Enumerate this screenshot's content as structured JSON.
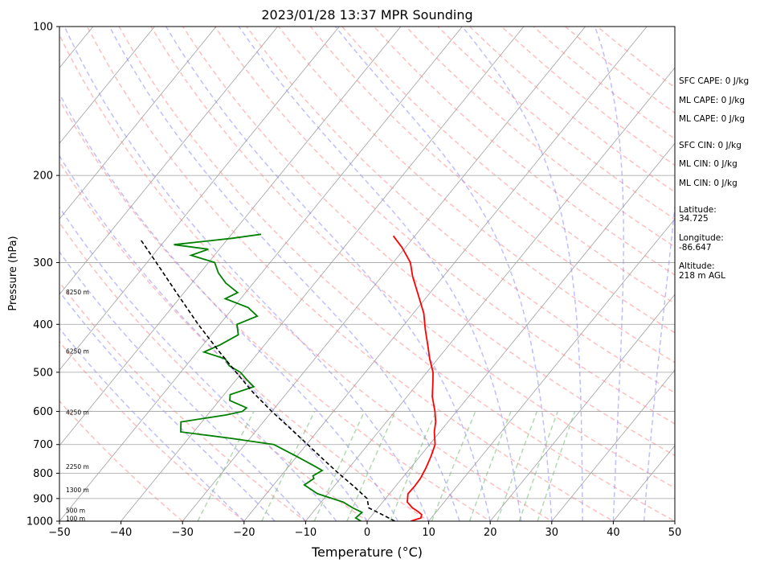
{
  "chart_data": {
    "type": "line",
    "title": "2023/01/28 13:37 MPR Sounding",
    "xlabel": "Temperature (°C)",
    "ylabel": "Pressure (hPa)",
    "xlim": [
      -50,
      50
    ],
    "ylim": [
      1000,
      100
    ],
    "yscale": "log",
    "x_ticks": [
      -50,
      -40,
      -30,
      -20,
      -10,
      0,
      10,
      20,
      30,
      40,
      50
    ],
    "x_tick_labels": [
      "−50",
      "−40",
      "−30",
      "−20",
      "−10",
      "0",
      "10",
      "20",
      "30",
      "40",
      "50"
    ],
    "y_ticks": [
      1000,
      900,
      800,
      700,
      600,
      500,
      400,
      300,
      200,
      100
    ],
    "y_tick_labels": [
      "1000",
      "900",
      "800",
      "700",
      "600",
      "500",
      "400",
      "300",
      "200",
      "100"
    ],
    "grid": true,
    "skew_t": true,
    "height_labels": [
      {
        "p": 990,
        "text": "100 m"
      },
      {
        "p": 955,
        "text": "500 m"
      },
      {
        "p": 867,
        "text": "1300 m"
      },
      {
        "p": 778,
        "text": "2250 m"
      },
      {
        "p": 604,
        "text": "4250 m"
      },
      {
        "p": 455,
        "text": "6250 m"
      },
      {
        "p": 345,
        "text": "8250 m"
      }
    ],
    "series": [
      {
        "kind": "temperature",
        "color": "#ff0000",
        "points": [
          [
            1000,
            7.1
          ],
          [
            985,
            8.3
          ],
          [
            970,
            8.0
          ],
          [
            955,
            6.9
          ],
          [
            940,
            5.6
          ],
          [
            915,
            4.0
          ],
          [
            880,
            3.0
          ],
          [
            850,
            3.1
          ],
          [
            820,
            3.0
          ],
          [
            780,
            2.5
          ],
          [
            740,
            1.8
          ],
          [
            700,
            0.9
          ],
          [
            660,
            -0.9
          ],
          [
            630,
            -2.0
          ],
          [
            600,
            -3.5
          ],
          [
            560,
            -5.9
          ],
          [
            520,
            -7.9
          ],
          [
            500,
            -9.0
          ],
          [
            470,
            -11.3
          ],
          [
            440,
            -13.5
          ],
          [
            410,
            -15.9
          ],
          [
            380,
            -18.3
          ],
          [
            350,
            -21.5
          ],
          [
            320,
            -25.0
          ],
          [
            300,
            -27.2
          ],
          [
            280,
            -30.5
          ],
          [
            265,
            -33.5
          ]
        ]
      },
      {
        "kind": "dewpoint",
        "color": "#008000",
        "points": [
          [
            1000,
            -1.0
          ],
          [
            985,
            -2.3
          ],
          [
            960,
            -2.0
          ],
          [
            940,
            -4.1
          ],
          [
            915,
            -6.4
          ],
          [
            880,
            -11.7
          ],
          [
            845,
            -15.0
          ],
          [
            820,
            -14.3
          ],
          [
            810,
            -14.8
          ],
          [
            790,
            -14.0
          ],
          [
            770,
            -16.3
          ],
          [
            740,
            -20.0
          ],
          [
            700,
            -25.3
          ],
          [
            680,
            -33.1
          ],
          [
            660,
            -42.1
          ],
          [
            630,
            -43.4
          ],
          [
            610,
            -37.0
          ],
          [
            600,
            -34.8
          ],
          [
            590,
            -34.6
          ],
          [
            570,
            -38.3
          ],
          [
            555,
            -39.0
          ],
          [
            535,
            -36.2
          ],
          [
            520,
            -38.0
          ],
          [
            500,
            -40.3
          ],
          [
            485,
            -43.0
          ],
          [
            470,
            -44.5
          ],
          [
            455,
            -48.9
          ],
          [
            440,
            -47.2
          ],
          [
            420,
            -45.6
          ],
          [
            400,
            -47.2
          ],
          [
            385,
            -45.0
          ],
          [
            370,
            -47.6
          ],
          [
            355,
            -52.5
          ],
          [
            345,
            -51.3
          ],
          [
            330,
            -54.5
          ],
          [
            315,
            -57.0
          ],
          [
            300,
            -59.0
          ],
          [
            290,
            -63.8
          ],
          [
            282,
            -61.8
          ],
          [
            276,
            -68.0
          ],
          [
            268,
            -59.4
          ],
          [
            263,
            -55.2
          ]
        ]
      },
      {
        "kind": "parcel",
        "color": "#000000",
        "dash": true,
        "points": [
          [
            1000,
            4.5
          ],
          [
            970,
            1.6
          ],
          [
            940,
            -1.5
          ],
          [
            900,
            -3.0
          ],
          [
            850,
            -6.8
          ],
          [
            800,
            -11.0
          ],
          [
            750,
            -15.3
          ],
          [
            700,
            -19.8
          ],
          [
            650,
            -24.7
          ],
          [
            600,
            -30.0
          ],
          [
            550,
            -35.5
          ],
          [
            500,
            -41.0
          ],
          [
            450,
            -47.0
          ],
          [
            400,
            -53.5
          ],
          [
            350,
            -60.5
          ],
          [
            300,
            -68.5
          ],
          [
            270,
            -74.0
          ]
        ]
      }
    ]
  },
  "annotations": [
    "SFC CAPE: 0 J/kg",
    "ML CAPE: 0 J/kg",
    "ML CAPE: 0 J/kg",
    "SFC CIN: 0 J/kg",
    "ML CIN: 0 J/kg",
    "ML CIN: 0 J/kg"
  ],
  "location": {
    "latitude_label": "Latitude:",
    "latitude_value": "34.725",
    "longitude_label": "Longitude:",
    "longitude_value": "-86.647",
    "altitude_label": "Altitude:",
    "altitude_value": "218 m AGL"
  },
  "colors": {
    "temperature": "#ff0000",
    "dewpoint": "#008000",
    "parcel": "#000000",
    "dry_adiabat": "#ff8080",
    "moist_adiabat": "#8080ff",
    "mixing_ratio": "#80c080",
    "isotherm": "#a0a0a0"
  }
}
